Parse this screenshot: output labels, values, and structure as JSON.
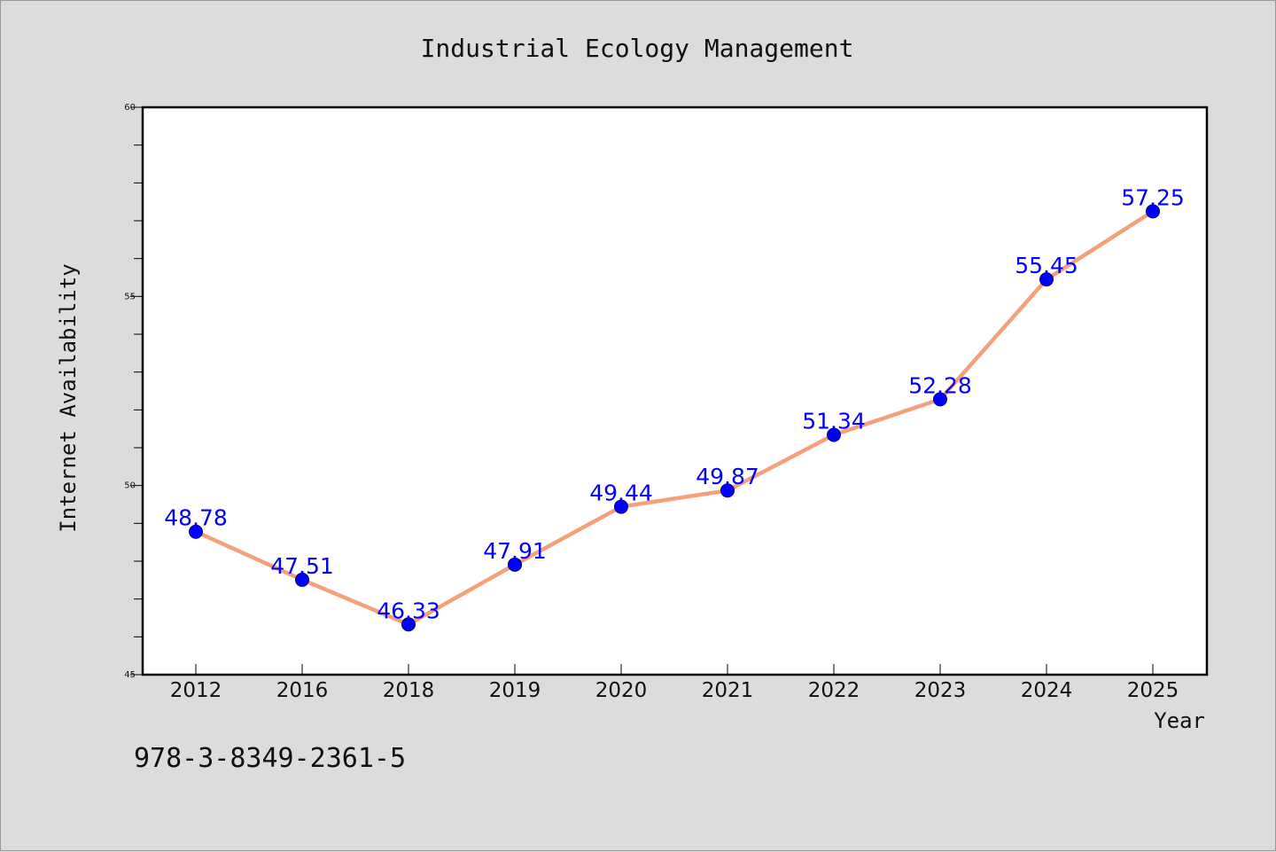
{
  "chart_data": {
    "type": "line",
    "title": "Industrial Ecology Management",
    "xlabel": "Year",
    "ylabel": "Internet Availability",
    "categories": [
      "2012",
      "2016",
      "2018",
      "2019",
      "2020",
      "2021",
      "2022",
      "2023",
      "2024",
      "2025"
    ],
    "series": [
      {
        "values": [
          48.78,
          47.51,
          46.33,
          47.91,
          49.44,
          49.87,
          51.34,
          52.28,
          55.45,
          57.25
        ],
        "labels": [
          "48.78",
          "47.51",
          "46.33",
          "47.91",
          "49.44",
          "49.87",
          "51.34",
          "52.28",
          "55.45",
          "57.25"
        ]
      }
    ],
    "ylim": [
      45,
      60
    ],
    "yticks": [
      "45",
      "50",
      "55",
      "60"
    ],
    "grid": false,
    "colors": {
      "line": "#f4a07a",
      "marker": "#0000ff",
      "data_label": "#0000ff",
      "plot_background": "#ffffff",
      "figure_background": "#dcdcdc"
    }
  },
  "footer": {
    "code": "978-3-8349-2361-5"
  }
}
